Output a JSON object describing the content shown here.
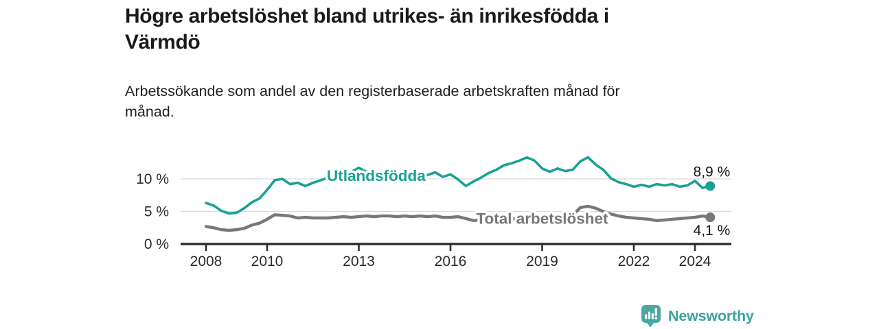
{
  "header": {
    "title_lines": [
      "Högre arbetslöshet bland utrikes- än inrikesfödda i",
      "Värmdö"
    ],
    "subtitle_lines": [
      "Arbetssökande som andel av den registerbaserade arbetskraften månad för",
      "månad."
    ]
  },
  "branding": {
    "name": "Newsworthy",
    "icon": "newsworthy-speech-bubble-bar-chart-icon",
    "color": "#3aa29a",
    "icon_color": "#4ba7a0"
  },
  "chart_data": {
    "type": "line",
    "title": "Högre arbetslöshet bland utrikes- än inrikesfödda i Värmdö",
    "subtitle": "Arbetssökande som andel av den registerbaserade arbetskraften månad för månad.",
    "grid": "horizontal",
    "legend_position": "inline-labels-on-lines",
    "unit": "%",
    "x_axis": {
      "tick_years": [
        2008,
        2010,
        2013,
        2016,
        2019,
        2022,
        2024
      ],
      "tick_labels": [
        "2008",
        "2010",
        "2013",
        "2016",
        "2019",
        "2022",
        "2024"
      ],
      "range": [
        2008,
        2024.5
      ]
    },
    "y_axis": {
      "ticks": [
        {
          "value": 0,
          "label": "0 %"
        },
        {
          "value": 5,
          "label": "5 %"
        },
        {
          "value": 10,
          "label": "10 %"
        }
      ],
      "range_drawn": [
        0,
        13.4
      ]
    },
    "x": [
      2008,
      2008.25,
      2008.5,
      2008.75,
      2009,
      2009.25,
      2009.5,
      2009.75,
      2010,
      2010.25,
      2010.5,
      2010.75,
      2011,
      2011.25,
      2011.5,
      2011.75,
      2012,
      2012.25,
      2012.5,
      2012.75,
      2013,
      2013.25,
      2013.5,
      2013.75,
      2014,
      2014.25,
      2014.5,
      2014.75,
      2015,
      2015.25,
      2015.5,
      2015.75,
      2016,
      2016.25,
      2016.5,
      2016.75,
      2017,
      2017.25,
      2017.5,
      2017.75,
      2018,
      2018.25,
      2018.5,
      2018.75,
      2019,
      2019.25,
      2019.5,
      2019.75,
      2020,
      2020.25,
      2020.5,
      2020.75,
      2021,
      2021.25,
      2021.5,
      2021.75,
      2022,
      2022.25,
      2022.5,
      2022.75,
      2023,
      2023.25,
      2023.5,
      2023.75,
      2024,
      2024.25,
      2024.5
    ],
    "series": [
      {
        "name": "Utlandsfödda",
        "color": "#19a192",
        "end_value": 8.9,
        "end_label": "8,9 %",
        "label_anchor": {
          "x": 2013.57,
          "y": 10.55
        },
        "values": [
          6.3,
          5.9,
          5.1,
          4.7,
          4.8,
          5.5,
          6.4,
          7.0,
          8.3,
          9.8,
          10.0,
          9.2,
          9.4,
          8.9,
          9.4,
          9.8,
          10.2,
          10.3,
          10.6,
          11.1,
          11.7,
          11.1,
          10.7,
          10.4,
          10.3,
          10.4,
          10.3,
          10.4,
          10.4,
          10.6,
          11.0,
          10.3,
          10.7,
          9.9,
          8.9,
          9.6,
          10.2,
          10.9,
          11.4,
          12.1,
          12.4,
          12.8,
          13.3,
          12.8,
          11.6,
          11.1,
          11.6,
          11.2,
          11.4,
          12.7,
          13.3,
          12.2,
          11.4,
          10.1,
          9.5,
          9.2,
          8.8,
          9.1,
          8.8,
          9.2,
          9.0,
          9.2,
          8.8,
          9.0,
          9.7,
          8.6,
          8.9
        ]
      },
      {
        "name": "Total arbetslöshet",
        "color": "#787878",
        "end_value": 4.1,
        "end_label": "4,1 %",
        "label_anchor": {
          "x": 2019.0,
          "y": 3.94
        },
        "values": [
          2.7,
          2.5,
          2.2,
          2.1,
          2.2,
          2.4,
          2.9,
          3.2,
          3.8,
          4.5,
          4.4,
          4.3,
          4.0,
          4.1,
          4.0,
          4.0,
          4.0,
          4.1,
          4.2,
          4.1,
          4.2,
          4.3,
          4.2,
          4.3,
          4.3,
          4.2,
          4.3,
          4.2,
          4.3,
          4.2,
          4.3,
          4.1,
          4.1,
          4.2,
          3.9,
          3.6,
          3.7,
          3.8,
          3.8,
          3.9,
          3.9,
          3.8,
          3.8,
          3.7,
          3.8,
          3.9,
          4.0,
          4.1,
          4.4,
          5.6,
          5.8,
          5.5,
          5.0,
          4.6,
          4.3,
          4.1,
          4.0,
          3.9,
          3.8,
          3.6,
          3.7,
          3.8,
          3.9,
          4.0,
          4.1,
          4.3,
          4.1
        ]
      }
    ]
  }
}
